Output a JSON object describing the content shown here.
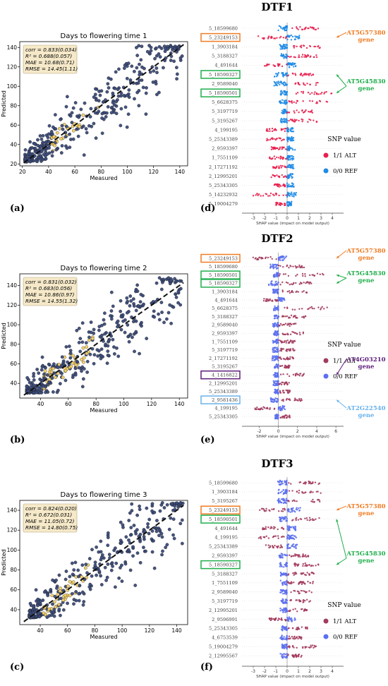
{
  "sections": [
    {
      "title": "DTF1",
      "scatter_label": "(a)",
      "shap_label": "(d)"
    },
    {
      "title": "DTF2",
      "scatter_label": "(b)",
      "shap_label": "(e)"
    },
    {
      "title": "DTF3",
      "scatter_label": "(c)",
      "shap_label": "(f)"
    }
  ],
  "colors": {
    "scatter_point": "#3b4b7a",
    "scatter_dense": "#f4d166",
    "fit_line": "#111111",
    "stats_box_bg": "#f5e9c9",
    "alt_red": "#e8204f",
    "ref_blue": "#1f8be6",
    "alt_maroon": "#a23b5c",
    "ref_violet": "#5b6ff0",
    "orange_gene": "#f07c24",
    "green_gene": "#1fae4b",
    "purple_gene": "#5d1e7a",
    "lightblue_gene": "#6ab2ea"
  },
  "chart_data": [
    {
      "type": "scatter",
      "title": "Days to flowering time 1",
      "xlabel": "Measured",
      "ylabel": "Predicted",
      "xlim": [
        18,
        146
      ],
      "ylim": [
        18,
        146
      ],
      "xticks": [
        20,
        40,
        60,
        80,
        100,
        120,
        140
      ],
      "yticks": [
        20,
        40,
        60,
        80,
        100,
        120,
        140
      ],
      "stats": [
        "corr = 0.833(0.034)",
        "R² = 0.688(0.057)",
        "MAE = 10.68(0.71)",
        "RMSE = 14.45(1.11)"
      ],
      "point_cloud": {
        "n": 1000,
        "x_range": [
          22,
          142
        ],
        "y_range": [
          22,
          142
        ],
        "fit": "y = x"
      }
    },
    {
      "type": "scatter",
      "title": "Days to flowering time 2",
      "xlabel": "Measured",
      "ylabel": "Predicted",
      "xlim": [
        25,
        146
      ],
      "ylim": [
        25,
        152
      ],
      "xticks": [
        40,
        60,
        80,
        100,
        120,
        140
      ],
      "yticks": [
        40,
        60,
        80,
        100,
        120,
        140
      ],
      "stats": [
        "corr = 0.831(0.032)",
        "R² = 0.683(0.056)",
        "MAE = 10.86(0.97)",
        "RMSE = 14.55(1.32)"
      ],
      "point_cloud": {
        "n": 1000,
        "x_range": [
          30,
          142
        ],
        "y_range": [
          30,
          148
        ],
        "fit": "y = x"
      }
    },
    {
      "type": "scatter",
      "title": "Days to flowering time 3",
      "xlabel": "Measured",
      "ylabel": "Predicted",
      "xlim": [
        25,
        148
      ],
      "ylim": [
        25,
        150
      ],
      "xticks": [
        40,
        60,
        80,
        100,
        120,
        140
      ],
      "yticks": [
        40,
        60,
        80,
        100,
        120,
        140
      ],
      "stats": [
        "corr = 0.824(0.020)",
        "R² = 0.672(0.031)",
        "MAE = 11.05(0.72)",
        "RMSE = 14.80(0.75)"
      ],
      "point_cloud": {
        "n": 1000,
        "x_range": [
          32,
          145
        ],
        "y_range": [
          32,
          148
        ],
        "fit": "y = x"
      }
    },
    {
      "type": "scatter",
      "subtype": "shap_beeswarm",
      "xlabel": "SHAP value (impact on model output)",
      "xlim": [
        -4,
        5
      ],
      "xticks": [
        -3,
        -2,
        -1,
        0,
        1,
        2,
        3,
        4
      ],
      "features": [
        "5_18599680",
        "5_23249153",
        "1_3903184",
        "5_3188327",
        "4_491644",
        "5_18590327",
        "2_9589040",
        "5_18590501",
        "5_6628375",
        "5_3197719",
        "5_3195267",
        "4_199195",
        "5_25343389",
        "2_9593397",
        "1_7551109",
        "2_17271192",
        "2_12995201",
        "5_25343305",
        "5_14232932",
        "5_19004279"
      ],
      "spread": [
        [
          -1.8,
          2.8
        ],
        [
          -2.6,
          2.2
        ],
        [
          -1.4,
          3.0
        ],
        [
          -1.2,
          2.7
        ],
        [
          -2.0,
          1.6
        ],
        [
          -2.3,
          2.4
        ],
        [
          -2.4,
          2.8
        ],
        [
          -1.2,
          4.0
        ],
        [
          -1.4,
          3.7
        ],
        [
          -1.0,
          2.3
        ],
        [
          -1.2,
          2.7
        ],
        [
          -1.9,
          1.3
        ],
        [
          -1.8,
          1.2
        ],
        [
          -1.4,
          1.4
        ],
        [
          -1.6,
          1.2
        ],
        [
          -1.3,
          1.3
        ],
        [
          -1.4,
          1.0
        ],
        [
          -1.2,
          1.2
        ],
        [
          -3.1,
          1.6
        ],
        [
          -1.0,
          0.8
        ]
      ],
      "color_map": "red_blue",
      "legend": {
        "title": "SNP value",
        "entries": [
          "1/1 ALT",
          "0/0 REF"
        ]
      },
      "callouts": [
        {
          "text": [
            "AT5G57380",
            "gene"
          ],
          "color": "orange_gene",
          "boxes": [
            1
          ]
        },
        {
          "text": [
            "AT5G45830",
            "gene"
          ],
          "color": "green_gene",
          "boxes": [
            5,
            7
          ]
        }
      ]
    },
    {
      "type": "scatter",
      "subtype": "shap_beeswarm",
      "xlabel": "SHAP value (impact on model output)",
      "xlim": [
        -3.8,
        6.8
      ],
      "xticks": [
        -2,
        0,
        2,
        4,
        6
      ],
      "features": [
        "5_23249153",
        "5_18599680",
        "5_18590501",
        "5_18590327",
        "1_3903184",
        "4_491644",
        "5_6628375",
        "5_3188327",
        "2_9589040",
        "2_9593397",
        "1_7551109",
        "5_3197719",
        "2_17271192",
        "5_3195267",
        "4_1416822",
        "2_12995201",
        "5_25343389",
        "2_9581436",
        "4_199195",
        "5_25343305"
      ],
      "spread": [
        [
          -2.7,
          1.8
        ],
        [
          -1.7,
          2.7
        ],
        [
          -1.0,
          5.0
        ],
        [
          -2.0,
          3.5
        ],
        [
          -1.2,
          3.2
        ],
        [
          -1.6,
          1.4
        ],
        [
          -1.0,
          5.2
        ],
        [
          -0.9,
          3.0
        ],
        [
          -1.2,
          1.9
        ],
        [
          -1.0,
          2.6
        ],
        [
          -1.4,
          1.8
        ],
        [
          -1.2,
          1.7
        ],
        [
          -1.4,
          1.6
        ],
        [
          -0.9,
          1.2
        ],
        [
          -1.0,
          2.9
        ],
        [
          -1.1,
          1.2
        ],
        [
          -0.9,
          1.2
        ],
        [
          -1.6,
          2.6
        ],
        [
          -2.5,
          1.4
        ],
        [
          -0.7,
          1.2
        ]
      ],
      "color_map": "maroon_violet",
      "legend": {
        "title": "SNP value",
        "entries": [
          "1/1 ALT",
          "0/0 REF"
        ]
      },
      "callouts": [
        {
          "text": [
            "AT5G57380",
            "gene"
          ],
          "color": "orange_gene",
          "boxes": [
            0
          ]
        },
        {
          "text": [
            "AT5G45830",
            "gene"
          ],
          "color": "green_gene",
          "boxes": [
            2,
            3
          ]
        },
        {
          "text": [
            "AT4G03210",
            "gene"
          ],
          "color": "purple_gene",
          "boxes": [
            14
          ]
        },
        {
          "text": [
            "AT2G22540",
            "gene"
          ],
          "color": "lightblue_gene",
          "boxes": [
            17
          ]
        }
      ]
    },
    {
      "type": "scatter",
      "subtype": "shap_beeswarm",
      "xlabel": "SHAP value (impact on model output)",
      "xlim": [
        -4,
        5
      ],
      "xticks": [
        -3,
        -2,
        -1,
        0,
        1,
        2,
        3,
        4
      ],
      "features": [
        "5_18599680",
        "1_3903184",
        "5_3195267",
        "5_23249153",
        "5_18590501",
        "4_491644",
        "4_199195",
        "5_25343389",
        "2_9593397",
        "5_18590327",
        "5_3188327",
        "1_7551109",
        "2_9589040",
        "5_3197719",
        "2_12995201",
        "2_9596991",
        "5_25343305",
        "4_6753539",
        "5_19004279",
        "2_12995567"
      ],
      "spread": [
        [
          -1.8,
          2.9
        ],
        [
          -1.6,
          3.2
        ],
        [
          -1.7,
          2.9
        ],
        [
          -2.5,
          2.4
        ],
        [
          -1.4,
          4.1
        ],
        [
          -2.5,
          1.6
        ],
        [
          -3.0,
          1.6
        ],
        [
          -1.9,
          1.9
        ],
        [
          -1.4,
          1.9
        ],
        [
          -1.8,
          2.8
        ],
        [
          -1.2,
          2.4
        ],
        [
          -1.2,
          2.3
        ],
        [
          -1.3,
          2.2
        ],
        [
          -1.2,
          2.1
        ],
        [
          -1.2,
          1.8
        ],
        [
          -1.6,
          1.5
        ],
        [
          -1.0,
          1.8
        ],
        [
          -1.3,
          1.4
        ],
        [
          -1.0,
          2.7
        ],
        [
          -1.2,
          1.3
        ]
      ],
      "color_map": "maroon_violet",
      "legend": {
        "title": "SNP value",
        "entries": [
          "1/1 ALT",
          "0/0 REF"
        ]
      },
      "callouts": [
        {
          "text": [
            "AT5G57380",
            "gene"
          ],
          "color": "orange_gene",
          "boxes": [
            3
          ]
        },
        {
          "text": [
            "AT5G45830",
            "gene"
          ],
          "color": "green_gene",
          "boxes": [
            4,
            9
          ]
        }
      ]
    }
  ]
}
